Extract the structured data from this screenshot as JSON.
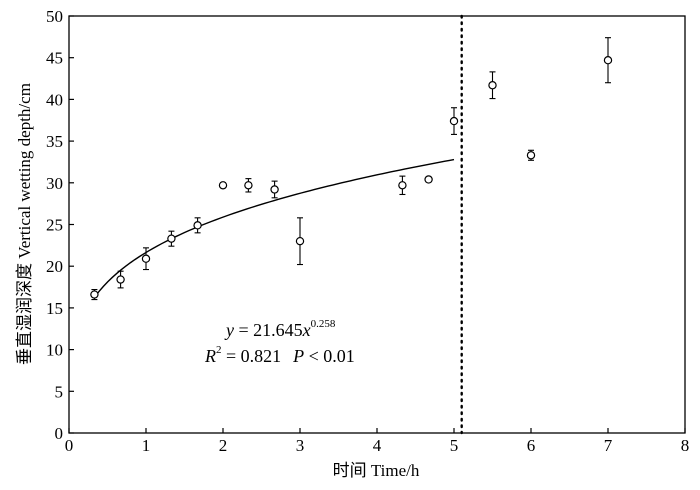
{
  "chart_data": {
    "type": "scatter",
    "xlabel": "时间 Time/h",
    "ylabel": "垂直湿润深度 Vertical wetting depth/cm",
    "xlim": [
      0,
      8
    ],
    "ylim": [
      0,
      50
    ],
    "x_ticks": [
      "0",
      "1",
      "2",
      "3",
      "4",
      "5",
      "6",
      "7",
      "8"
    ],
    "y_ticks": [
      "0",
      "5",
      "10",
      "15",
      "20",
      "25",
      "30",
      "35",
      "40",
      "45",
      "50"
    ],
    "grid": false,
    "points": [
      {
        "x": 0.33,
        "y": 16.6,
        "err": 0.6
      },
      {
        "x": 0.67,
        "y": 18.4,
        "err": 1.0
      },
      {
        "x": 1.0,
        "y": 20.9,
        "err": 1.3
      },
      {
        "x": 1.33,
        "y": 23.3,
        "err": 0.9
      },
      {
        "x": 1.67,
        "y": 24.9,
        "err": 0.9
      },
      {
        "x": 2.0,
        "y": 29.7,
        "err": 0.3
      },
      {
        "x": 2.33,
        "y": 29.7,
        "err": 0.8
      },
      {
        "x": 2.67,
        "y": 29.2,
        "err": 1.0
      },
      {
        "x": 3.0,
        "y": 23.0,
        "err": 2.8
      },
      {
        "x": 4.33,
        "y": 29.7,
        "err": 1.1
      },
      {
        "x": 4.67,
        "y": 30.4,
        "err": 0.3
      },
      {
        "x": 5.0,
        "y": 37.4,
        "err": 1.6
      },
      {
        "x": 5.5,
        "y": 41.7,
        "err": 1.6
      },
      {
        "x": 6.0,
        "y": 33.3,
        "err": 0.6
      },
      {
        "x": 7.0,
        "y": 44.7,
        "err": 2.7
      }
    ],
    "fit": {
      "coef": 21.645,
      "exponent": 0.258,
      "x_start": 0.33,
      "x_end": 5.0
    },
    "reference_line": {
      "x": 5.1,
      "style": "dotted"
    },
    "annotation": {
      "y_prefix": "y",
      "eq_sign": " = ",
      "coef_text": "21.645",
      "x_var": "x",
      "exponent_text": "0.258",
      "r_label": "R",
      "r_sup": "2",
      "r_value_text": " = 0.821",
      "p_label": "P",
      "p_text": " < 0.01"
    }
  }
}
